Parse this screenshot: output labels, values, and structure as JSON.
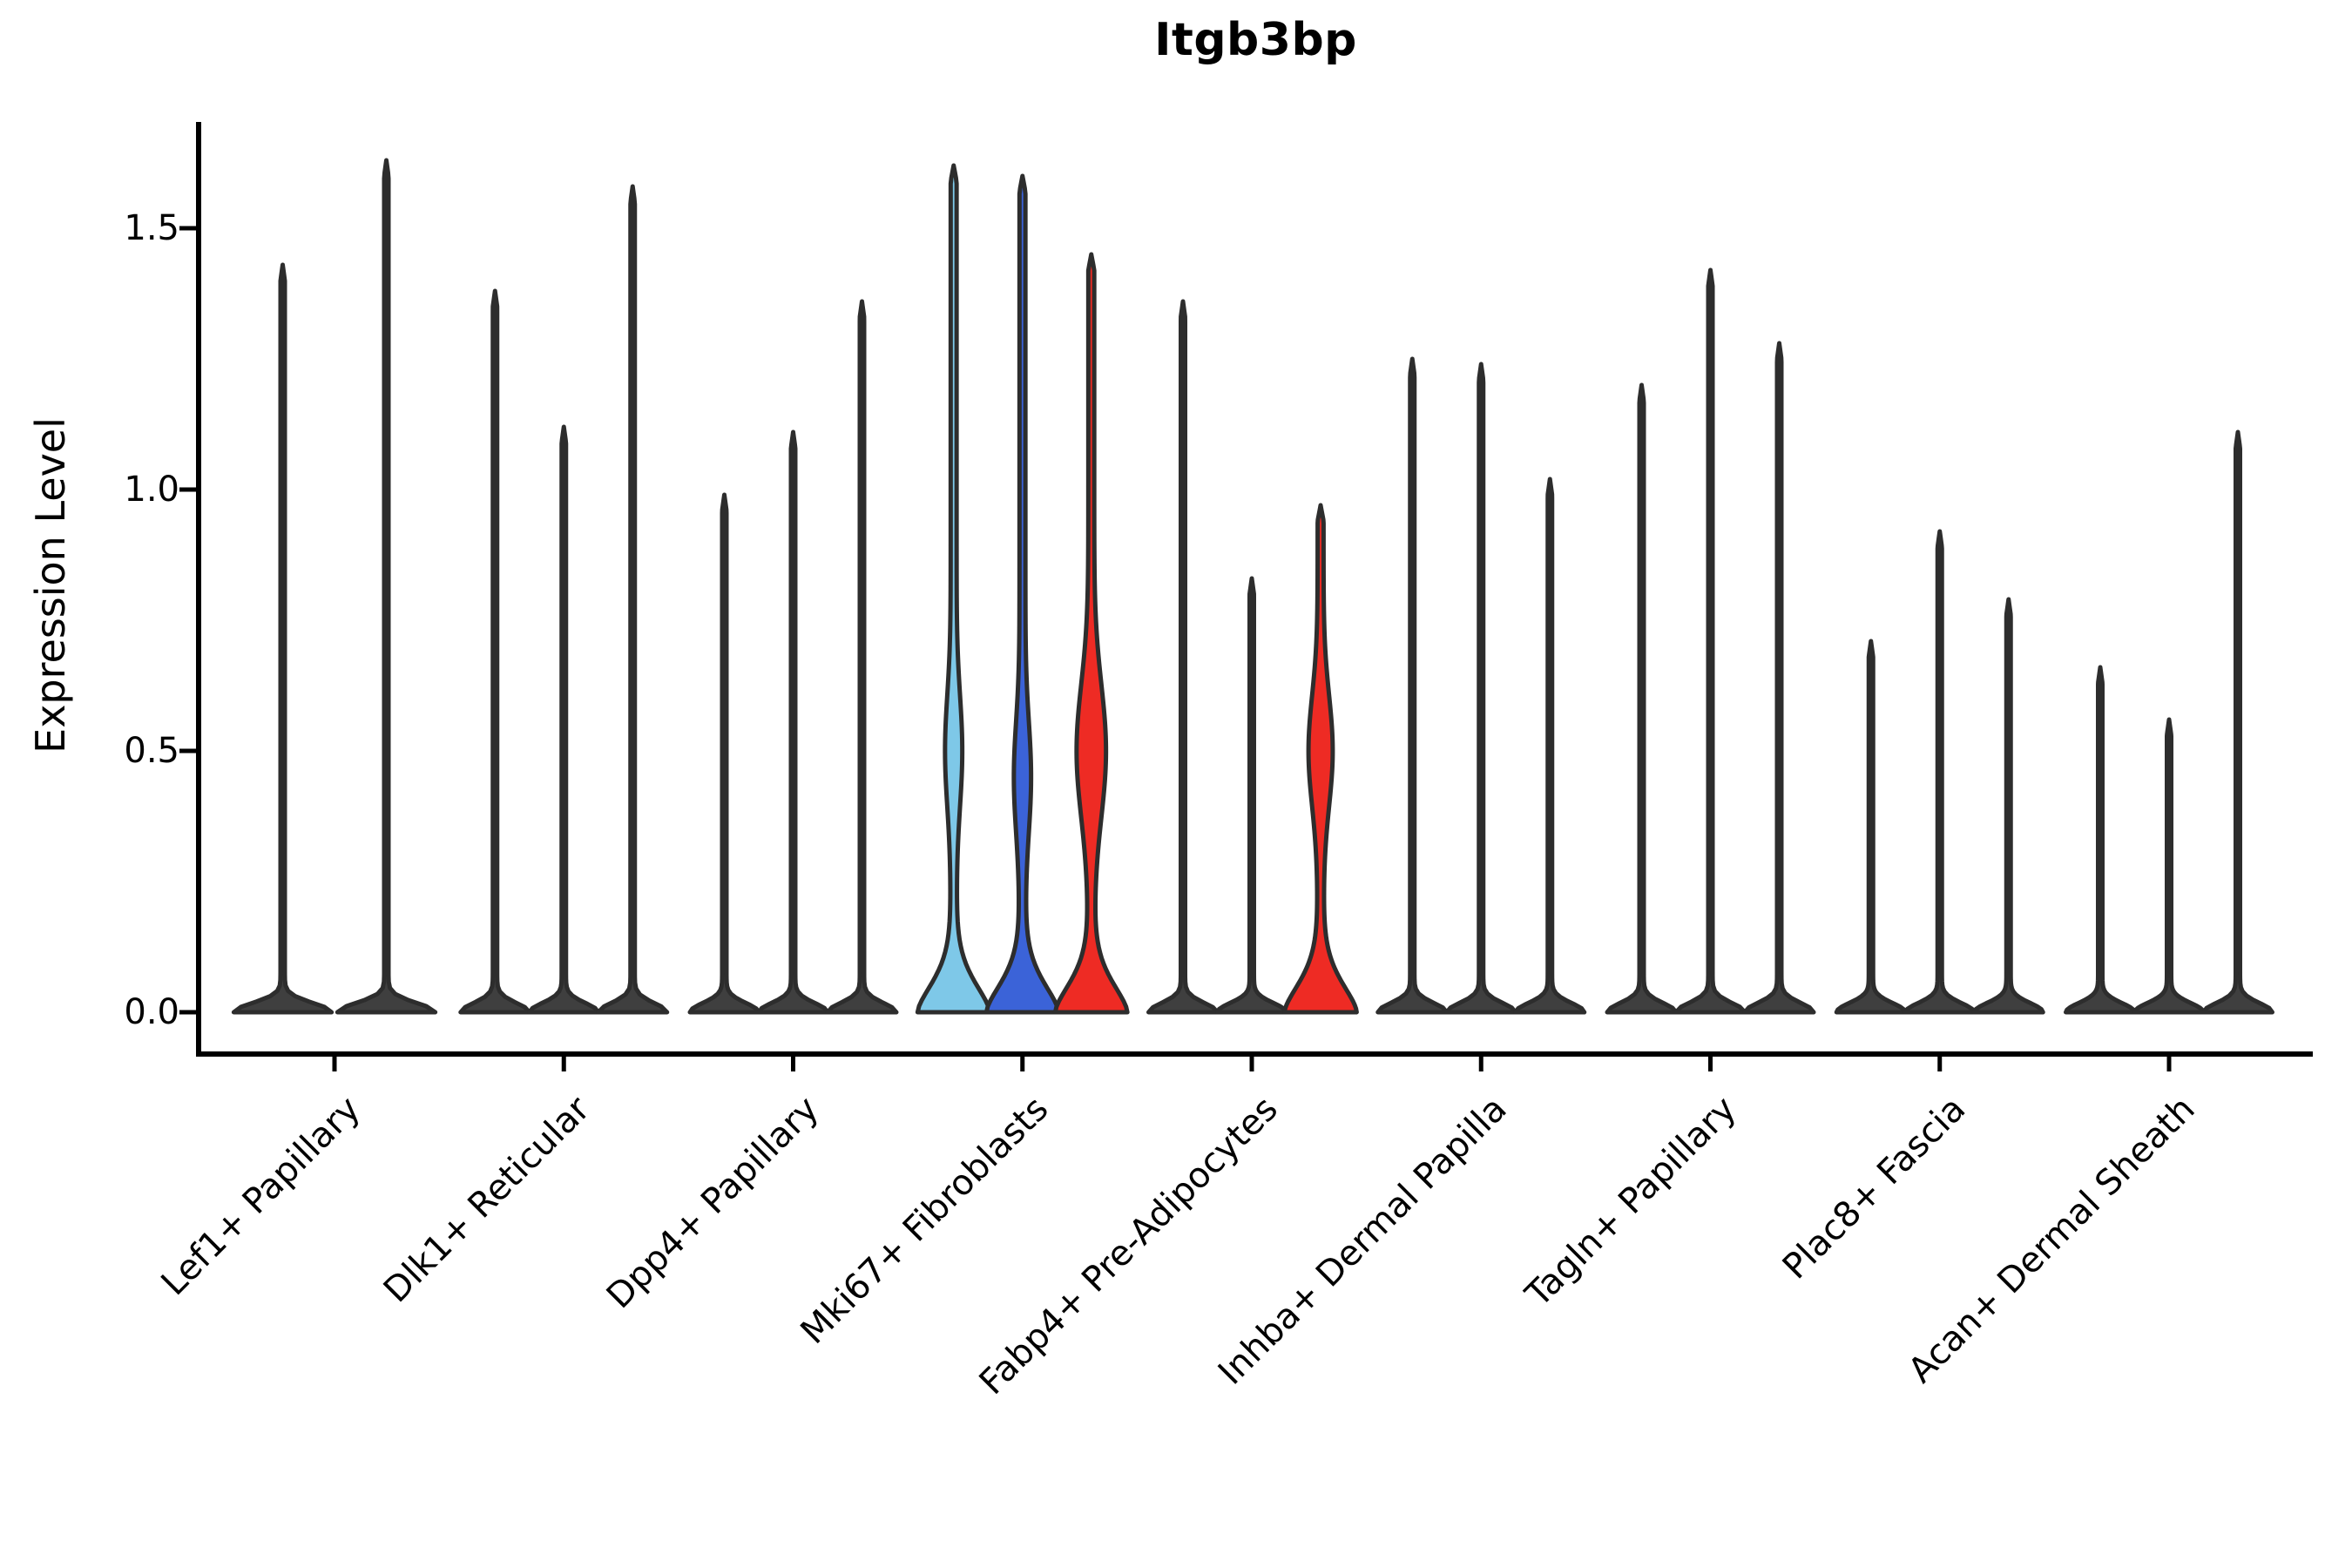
{
  "figure": {
    "title": "Itgb3bp",
    "ylabel": "Expression Level",
    "background_color": "#ffffff"
  },
  "chart_data": {
    "type": "violin",
    "title": "Itgb3bp",
    "xlabel": "",
    "ylabel": "Expression Level",
    "ylim": [
      -0.08,
      1.71
    ],
    "yticks": [
      0.0,
      0.5,
      1.0,
      1.5
    ],
    "ytick_labels": [
      "0.0",
      "0.5",
      "1.0",
      "1.5"
    ],
    "grid": false,
    "legend": "none",
    "colors": {
      "outline": "#2D2D2D",
      "axis": "#000000",
      "default_violin_fill": "#3F3F3F",
      "highlight_lightblue": "#7EC8E8",
      "highlight_blue": "#3B63D8",
      "highlight_red": "#EE2B24"
    },
    "categories": [
      {
        "label": "Lef1+ Papillary",
        "violins": [
          {
            "peak": 1.43,
            "fill": "#3F3F3F",
            "style": "spike"
          },
          {
            "peak": 1.63,
            "fill": "#3F3F3F",
            "style": "spike"
          }
        ]
      },
      {
        "label": "Dlk1+ Reticular",
        "violins": [
          {
            "peak": 1.38,
            "fill": "#3F3F3F",
            "style": "spike"
          },
          {
            "peak": 1.12,
            "fill": "#3F3F3F",
            "style": "spike"
          },
          {
            "peak": 1.58,
            "fill": "#3F3F3F",
            "style": "spike"
          }
        ]
      },
      {
        "label": "Dpp4+ Papillary",
        "violins": [
          {
            "peak": 0.99,
            "fill": "#3F3F3F",
            "style": "spike"
          },
          {
            "peak": 1.11,
            "fill": "#3F3F3F",
            "style": "spike"
          },
          {
            "peak": 1.36,
            "fill": "#3F3F3F",
            "style": "spike"
          }
        ]
      },
      {
        "label": "Mki67+ Fibroblasts",
        "violins": [
          {
            "peak": 1.62,
            "fill": "#7EC8E8",
            "style": "bell",
            "bulge": {
              "center": 0.5,
              "halfwidth": 6.5,
              "spread": 0.15
            }
          },
          {
            "peak": 1.6,
            "fill": "#3B63D8",
            "style": "bell",
            "bulge": {
              "center": 0.45,
              "halfwidth": 6.5,
              "spread": 0.15
            }
          },
          {
            "peak": 1.45,
            "fill": "#EE2B24",
            "style": "bell",
            "bulge": {
              "center": 0.5,
              "halfwidth": 13.5,
              "spread": 0.18
            }
          }
        ]
      },
      {
        "label": "Fabp4+ Pre-Adipocytes",
        "violins": [
          {
            "peak": 1.36,
            "fill": "#3F3F3F",
            "style": "spike"
          },
          {
            "peak": 0.83,
            "fill": "#3F3F3F",
            "style": "spike"
          },
          {
            "peak": 0.97,
            "fill": "#EE2B24",
            "style": "bell",
            "bulge": {
              "center": 0.5,
              "halfwidth": 10.5,
              "spread": 0.15
            }
          }
        ]
      },
      {
        "label": "Inhba+ Dermal Papilla",
        "violins": [
          {
            "peak": 1.25,
            "fill": "#3F3F3F",
            "style": "spike"
          },
          {
            "peak": 1.24,
            "fill": "#3F3F3F",
            "style": "spike"
          },
          {
            "peak": 1.02,
            "fill": "#3F3F3F",
            "style": "spike"
          }
        ]
      },
      {
        "label": "Tagln+ Papillary",
        "violins": [
          {
            "peak": 1.2,
            "fill": "#3F3F3F",
            "style": "spike"
          },
          {
            "peak": 1.42,
            "fill": "#3F3F3F",
            "style": "spike"
          },
          {
            "peak": 1.28,
            "fill": "#3F3F3F",
            "style": "spike"
          }
        ]
      },
      {
        "label": "Plac8+ Fascia",
        "violins": [
          {
            "peak": 0.71,
            "fill": "#3F3F3F",
            "style": "spike"
          },
          {
            "peak": 0.92,
            "fill": "#3F3F3F",
            "style": "spike"
          },
          {
            "peak": 0.79,
            "fill": "#3F3F3F",
            "style": "spike"
          }
        ]
      },
      {
        "label": "Acan+ Dermal Sheath",
        "violins": [
          {
            "peak": 0.66,
            "fill": "#3F3F3F",
            "style": "spike"
          },
          {
            "peak": 0.56,
            "fill": "#3F3F3F",
            "style": "spike"
          },
          {
            "peak": 1.11,
            "fill": "#3F3F3F",
            "style": "spike"
          }
        ]
      }
    ]
  }
}
